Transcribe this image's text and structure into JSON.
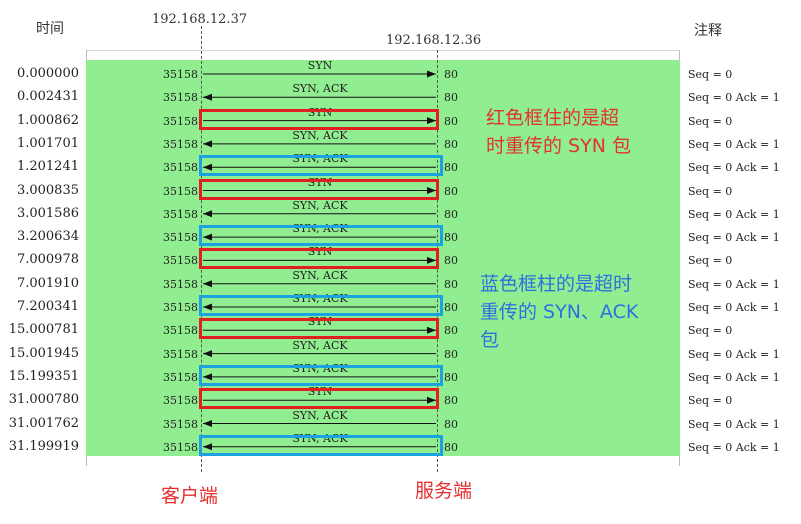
{
  "header": {
    "time_label": "时间",
    "client_ip": "192.168.12.37",
    "server_ip": "192.168.12.36",
    "note_label": "注释"
  },
  "rows": [
    {
      "time": "0.000000",
      "dir": "right",
      "label": "SYN",
      "src_port": "35158",
      "dst_port": "80",
      "note": "Seq = 0",
      "box": ""
    },
    {
      "time": "0.002431",
      "dir": "left",
      "label": "SYN, ACK",
      "src_port": "35158",
      "dst_port": "80",
      "note": "Seq = 0 Ack = 1",
      "box": ""
    },
    {
      "time": "1.000862",
      "dir": "right",
      "label": "SYN",
      "src_port": "35158",
      "dst_port": "80",
      "note": "Seq = 0",
      "box": "red"
    },
    {
      "time": "1.001701",
      "dir": "left",
      "label": "SYN, ACK",
      "src_port": "35158",
      "dst_port": "80",
      "note": "Seq = 0 Ack = 1",
      "box": ""
    },
    {
      "time": "1.201241",
      "dir": "left",
      "label": "SYN, ACK",
      "src_port": "35158",
      "dst_port": "80",
      "note": "Seq = 0 Ack = 1",
      "box": "blue"
    },
    {
      "time": "3.000835",
      "dir": "right",
      "label": "SYN",
      "src_port": "35158",
      "dst_port": "80",
      "note": "Seq = 0",
      "box": "red"
    },
    {
      "time": "3.001586",
      "dir": "left",
      "label": "SYN, ACK",
      "src_port": "35158",
      "dst_port": "80",
      "note": "Seq = 0 Ack = 1",
      "box": ""
    },
    {
      "time": "3.200634",
      "dir": "left",
      "label": "SYN, ACK",
      "src_port": "35158",
      "dst_port": "80",
      "note": "Seq = 0 Ack = 1",
      "box": "blue"
    },
    {
      "time": "7.000978",
      "dir": "right",
      "label": "SYN",
      "src_port": "35158",
      "dst_port": "80",
      "note": "Seq = 0",
      "box": "red"
    },
    {
      "time": "7.001910",
      "dir": "left",
      "label": "SYN, ACK",
      "src_port": "35158",
      "dst_port": "80",
      "note": "Seq = 0 Ack = 1",
      "box": ""
    },
    {
      "time": "7.200341",
      "dir": "left",
      "label": "SYN, ACK",
      "src_port": "35158",
      "dst_port": "80",
      "note": "Seq = 0 Ack = 1",
      "box": "blue"
    },
    {
      "time": "15.000781",
      "dir": "right",
      "label": "SYN",
      "src_port": "35158",
      "dst_port": "80",
      "note": "Seq = 0",
      "box": "red"
    },
    {
      "time": "15.001945",
      "dir": "left",
      "label": "SYN, ACK",
      "src_port": "35158",
      "dst_port": "80",
      "note": "Seq = 0 Ack = 1",
      "box": ""
    },
    {
      "time": "15.199351",
      "dir": "left",
      "label": "SYN, ACK",
      "src_port": "35158",
      "dst_port": "80",
      "note": "Seq = 0 Ack = 1",
      "box": "blue"
    },
    {
      "time": "31.000780",
      "dir": "right",
      "label": "SYN",
      "src_port": "35158",
      "dst_port": "80",
      "note": "Seq = 0",
      "box": "red"
    },
    {
      "time": "31.001762",
      "dir": "left",
      "label": "SYN, ACK",
      "src_port": "35158",
      "dst_port": "80",
      "note": "Seq = 0 Ack = 1",
      "box": ""
    },
    {
      "time": "31.199919",
      "dir": "left",
      "label": "SYN, ACK",
      "src_port": "35158",
      "dst_port": "80",
      "note": "Seq = 0 Ack = 1",
      "box": "blue"
    }
  ],
  "annotations": {
    "red_text": [
      "红色框住的是超",
      "时重传的 SYN 包"
    ],
    "blue_text": [
      "蓝色框柱的是超时",
      "重传的 SYN、ACK",
      "包"
    ]
  },
  "footer": {
    "client_label": "客户端",
    "server_label": "服务端"
  },
  "colors": {
    "background_band": "#90ee90",
    "red_box": "#e02020",
    "blue_box": "#1aa3e0",
    "red_text": "#e53030",
    "blue_text": "#2f6fe0"
  }
}
